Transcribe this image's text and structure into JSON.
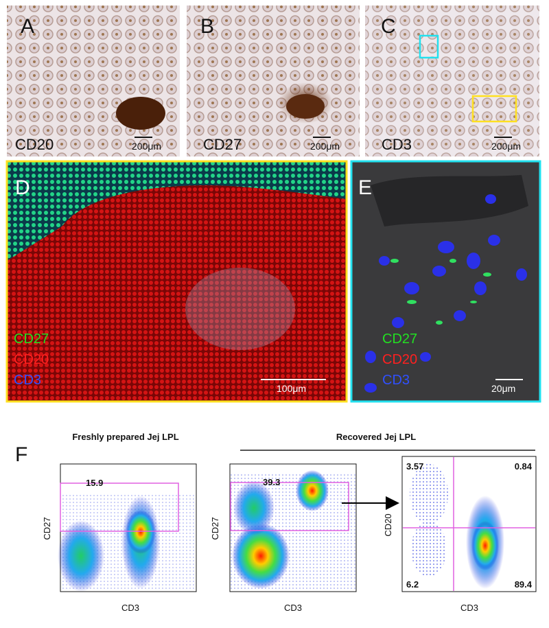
{
  "panels_top": [
    {
      "label": "A",
      "marker": "CD20",
      "scale": "200μm"
    },
    {
      "label": "B",
      "marker": "CD27",
      "scale": "200μm"
    },
    {
      "label": "C",
      "marker": "CD3",
      "scale": "200μm"
    }
  ],
  "panel_d": {
    "label": "D",
    "legend": [
      "CD27",
      "CD20",
      "CD3"
    ],
    "scale": "100μm"
  },
  "panel_e": {
    "label": "E",
    "legend": [
      "CD27",
      "CD20",
      "CD3"
    ],
    "scale": "20μm"
  },
  "panel_f": {
    "label": "F",
    "group_title": "Recovered Jej LPL",
    "plots": [
      {
        "title": "Freshly prepared Jej LPL",
        "x_label": "CD3",
        "y_label": "CD27",
        "gates": [
          "15.9"
        ]
      },
      {
        "x_label": "CD3",
        "y_label": "CD27",
        "gates": [
          "39.3"
        ]
      },
      {
        "x_label": "CD3",
        "y_label": "CD20",
        "gates": [
          "3.57",
          "0.84",
          "6.2",
          "89.4"
        ]
      }
    ]
  }
}
